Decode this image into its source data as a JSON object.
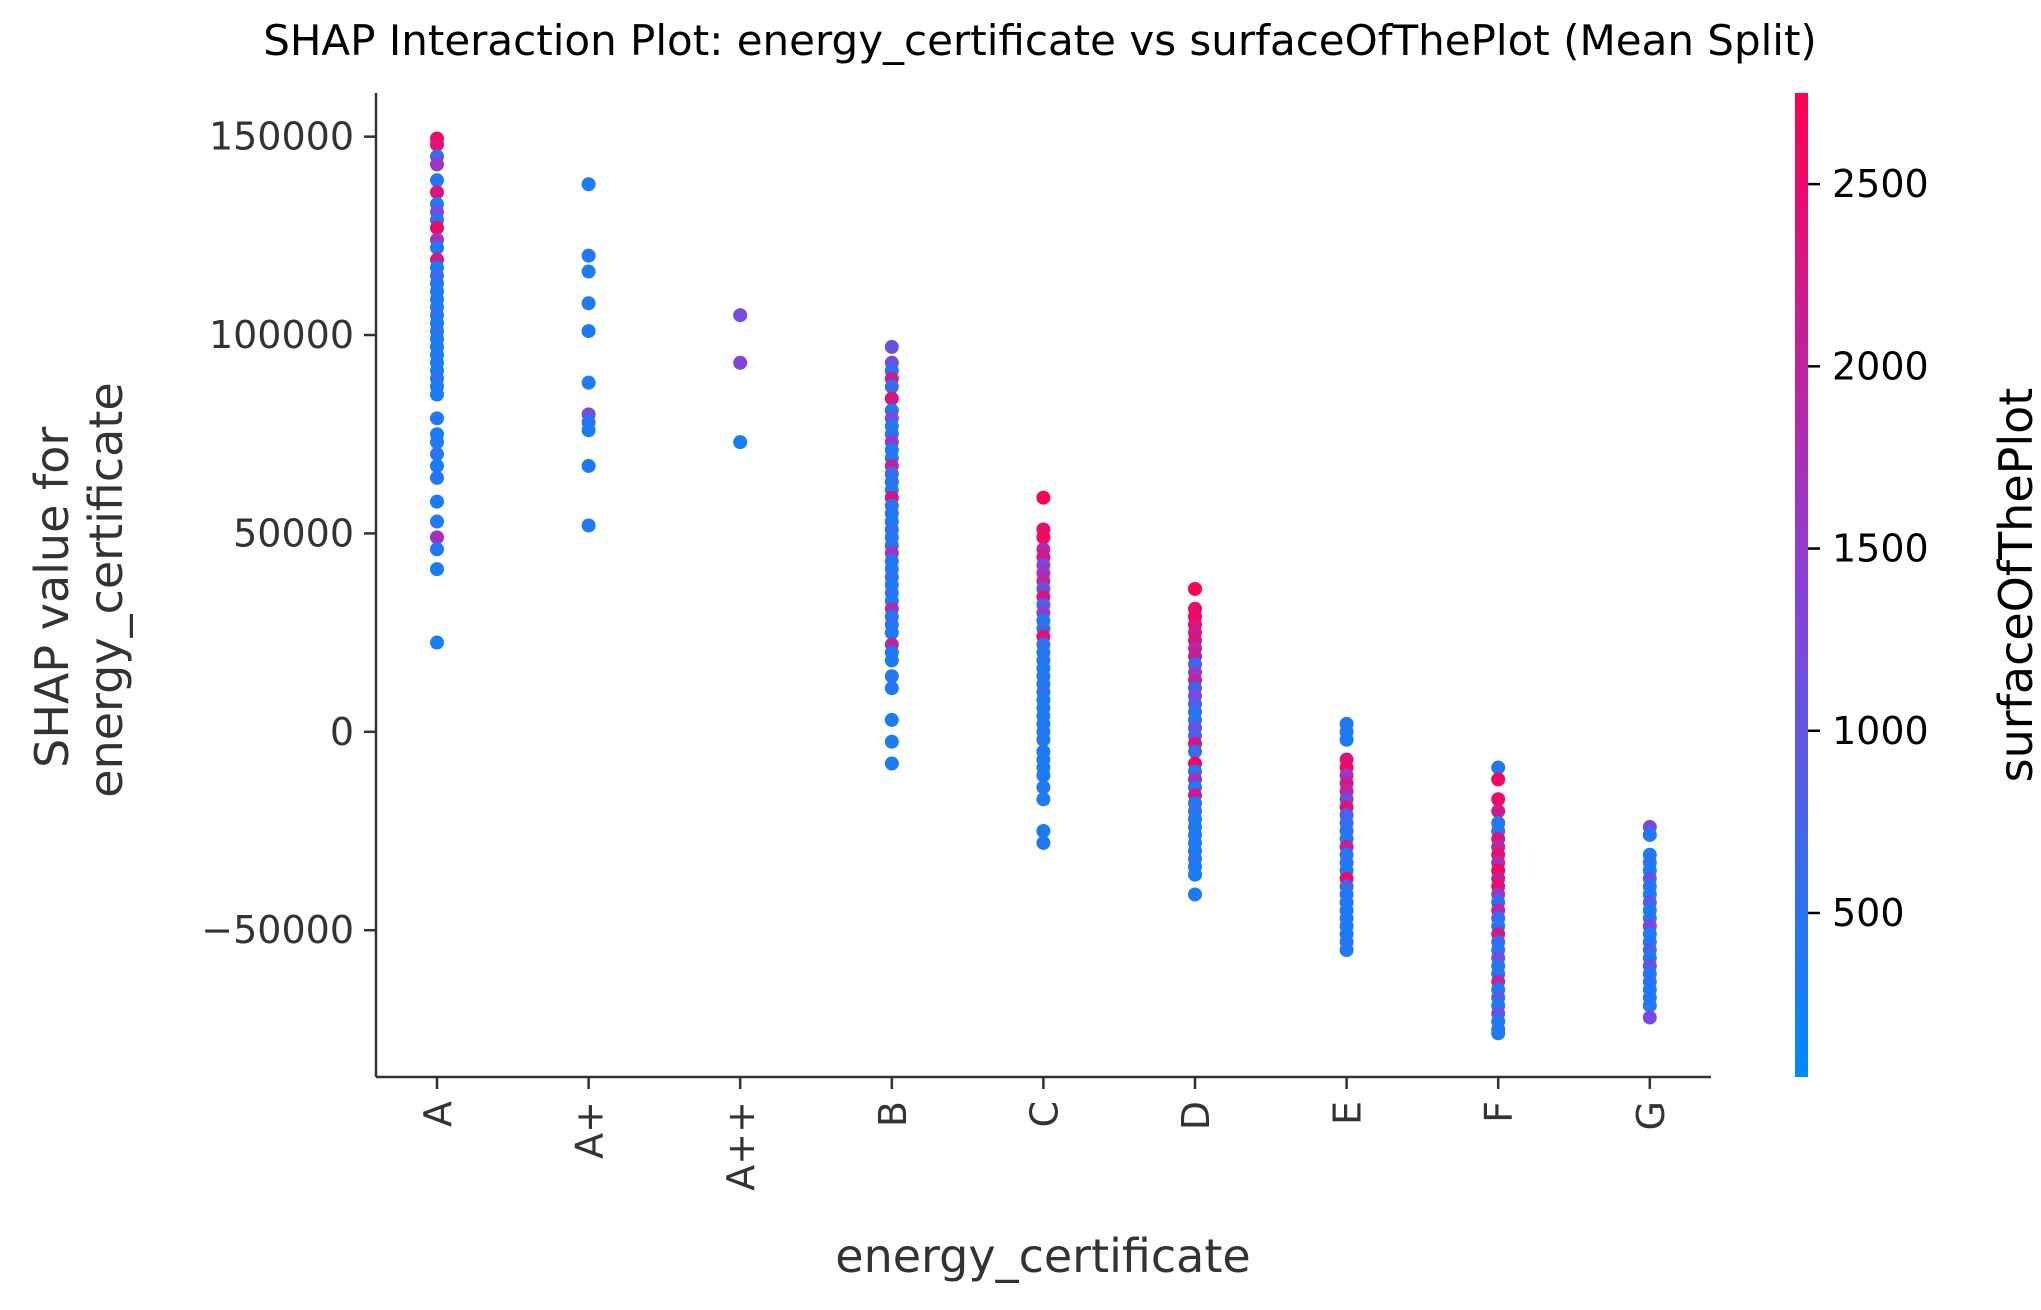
{
  "chart_data": {
    "type": "scatter",
    "title": "SHAP Interaction Plot: energy_certificate vs surfaceOfThePlot (Mean Split)",
    "xlabel": "energy_certificate",
    "ylabel_lines": [
      "SHAP value for",
      "energy_certificate"
    ],
    "categories": [
      "A",
      "A+",
      "A++",
      "B",
      "C",
      "D",
      "E",
      "F",
      "G"
    ],
    "y_ticks": [
      150000,
      100000,
      50000,
      0,
      -50000
    ],
    "y_tick_labels": [
      "150000",
      "100000",
      "50000",
      "0",
      "−50000"
    ],
    "ylim": [
      -87000,
      161000
    ],
    "colorbar": {
      "label": "surfaceOfThePlot",
      "range": [
        50,
        2750
      ],
      "ticks": [
        2500,
        2000,
        1500,
        1000,
        500
      ],
      "tick_labels": [
        "2500",
        "2000",
        "1500",
        "1000",
        "500"
      ],
      "color_low": "#008afb",
      "color_mid": "#8a40d8",
      "color_high": "#ff0052"
    },
    "series": [
      {
        "category": "A",
        "points": [
          [
            149500,
            2600
          ],
          [
            148000,
            2400
          ],
          [
            145000,
            600
          ],
          [
            143000,
            1600
          ],
          [
            139000,
            400
          ],
          [
            136000,
            2300
          ],
          [
            133000,
            300
          ],
          [
            131000,
            1200
          ],
          [
            129000,
            500
          ],
          [
            127000,
            2500
          ],
          [
            124000,
            1700
          ],
          [
            122000,
            400
          ],
          [
            119000,
            2200
          ],
          [
            117000,
            300
          ],
          [
            115000,
            600
          ],
          [
            113000,
            500
          ],
          [
            111000,
            300
          ],
          [
            109000,
            400
          ],
          [
            107000,
            350
          ],
          [
            105000,
            500
          ],
          [
            103000,
            300
          ],
          [
            101000,
            450
          ],
          [
            99000,
            400
          ],
          [
            97000,
            300
          ],
          [
            95000,
            350
          ],
          [
            93000,
            400
          ],
          [
            91000,
            300
          ],
          [
            89000,
            500
          ],
          [
            87000,
            350
          ],
          [
            85000,
            300
          ],
          [
            79000,
            400
          ],
          [
            75000,
            300
          ],
          [
            73000,
            350
          ],
          [
            70000,
            450
          ],
          [
            67000,
            300
          ],
          [
            64000,
            400
          ],
          [
            58000,
            300
          ],
          [
            53000,
            350
          ],
          [
            49000,
            1700
          ],
          [
            46000,
            400
          ],
          [
            41000,
            300
          ],
          [
            22500,
            250
          ]
        ]
      },
      {
        "category": "A+",
        "points": [
          [
            138000,
            350
          ],
          [
            120000,
            400
          ],
          [
            116000,
            350
          ],
          [
            108000,
            400
          ],
          [
            101000,
            300
          ],
          [
            88000,
            350
          ],
          [
            80000,
            1200
          ],
          [
            78000,
            400
          ],
          [
            76000,
            350
          ],
          [
            67000,
            300
          ],
          [
            52000,
            350
          ]
        ]
      },
      {
        "category": "A++",
        "points": [
          [
            105000,
            1200
          ],
          [
            93000,
            1300
          ],
          [
            73000,
            300
          ]
        ]
      },
      {
        "category": "B",
        "points": [
          [
            97000,
            1100
          ],
          [
            93000,
            1200
          ],
          [
            91000,
            500
          ],
          [
            89000,
            2100
          ],
          [
            87000,
            600
          ],
          [
            84000,
            2300
          ],
          [
            81000,
            400
          ],
          [
            79000,
            1300
          ],
          [
            77000,
            350
          ],
          [
            75000,
            500
          ],
          [
            73000,
            1500
          ],
          [
            71000,
            350
          ],
          [
            69000,
            400
          ],
          [
            67000,
            2000
          ],
          [
            65000,
            600
          ],
          [
            63000,
            450
          ],
          [
            61000,
            350
          ],
          [
            59000,
            2300
          ],
          [
            57000,
            500
          ],
          [
            55000,
            400
          ],
          [
            53000,
            300
          ],
          [
            51000,
            600
          ],
          [
            49000,
            350
          ],
          [
            47000,
            500
          ],
          [
            45000,
            1600
          ],
          [
            43000,
            400
          ],
          [
            41000,
            300
          ],
          [
            39000,
            500
          ],
          [
            37000,
            350
          ],
          [
            35000,
            450
          ],
          [
            33000,
            300
          ],
          [
            31000,
            1800
          ],
          [
            29000,
            400
          ],
          [
            27000,
            500
          ],
          [
            25000,
            350
          ],
          [
            22000,
            2000
          ],
          [
            20000,
            400
          ],
          [
            18000,
            300
          ],
          [
            14000,
            450
          ],
          [
            11000,
            350
          ],
          [
            3000,
            300
          ],
          [
            -2500,
            350
          ],
          [
            -8000,
            300
          ]
        ]
      },
      {
        "category": "C",
        "points": [
          [
            59000,
            2700
          ],
          [
            51000,
            2500
          ],
          [
            49000,
            2600
          ],
          [
            46000,
            1900
          ],
          [
            44000,
            2200
          ],
          [
            42000,
            1300
          ],
          [
            40000,
            1700
          ],
          [
            38000,
            2000
          ],
          [
            36000,
            1000
          ],
          [
            34000,
            2300
          ],
          [
            32000,
            800
          ],
          [
            30000,
            1500
          ],
          [
            28000,
            400
          ],
          [
            26000,
            600
          ],
          [
            24000,
            2400
          ],
          [
            22000,
            500
          ],
          [
            20000,
            350
          ],
          [
            18000,
            450
          ],
          [
            16000,
            300
          ],
          [
            14000,
            400
          ],
          [
            12000,
            350
          ],
          [
            10000,
            500
          ],
          [
            8000,
            300
          ],
          [
            6000,
            400
          ],
          [
            4000,
            350
          ],
          [
            2000,
            300
          ],
          [
            0,
            450
          ],
          [
            -2000,
            350
          ],
          [
            -5000,
            300
          ],
          [
            -7000,
            400
          ],
          [
            -9000,
            350
          ],
          [
            -11000,
            300
          ],
          [
            -14000,
            400
          ],
          [
            -17000,
            350
          ],
          [
            -25000,
            300
          ],
          [
            -28000,
            400
          ]
        ]
      },
      {
        "category": "D",
        "points": [
          [
            36000,
            2700
          ],
          [
            31000,
            2500
          ],
          [
            29000,
            2600
          ],
          [
            27000,
            2400
          ],
          [
            25000,
            2200
          ],
          [
            23000,
            2300
          ],
          [
            21000,
            1900
          ],
          [
            19000,
            2100
          ],
          [
            17000,
            600
          ],
          [
            15000,
            1500
          ],
          [
            13000,
            2000
          ],
          [
            11000,
            700
          ],
          [
            9000,
            1200
          ],
          [
            7000,
            900
          ],
          [
            5000,
            500
          ],
          [
            3000,
            400
          ],
          [
            1000,
            1100
          ],
          [
            -1000,
            800
          ],
          [
            -3000,
            2300
          ],
          [
            -5000,
            600
          ],
          [
            -8000,
            2500
          ],
          [
            -10000,
            400
          ],
          [
            -12000,
            1700
          ],
          [
            -14000,
            350
          ],
          [
            -16000,
            2200
          ],
          [
            -18000,
            400
          ],
          [
            -20000,
            500
          ],
          [
            -22000,
            350
          ],
          [
            -24000,
            300
          ],
          [
            -26000,
            400
          ],
          [
            -28000,
            350
          ],
          [
            -30000,
            300
          ],
          [
            -32000,
            450
          ],
          [
            -34000,
            350
          ],
          [
            -36000,
            300
          ],
          [
            -41000,
            400
          ]
        ]
      },
      {
        "category": "E",
        "points": [
          [
            2000,
            400
          ],
          [
            0,
            350
          ],
          [
            -2000,
            300
          ],
          [
            -7000,
            2300
          ],
          [
            -9000,
            2600
          ],
          [
            -11000,
            1600
          ],
          [
            -13000,
            2200
          ],
          [
            -15000,
            2000
          ],
          [
            -17000,
            1100
          ],
          [
            -19000,
            2400
          ],
          [
            -21000,
            800
          ],
          [
            -23000,
            600
          ],
          [
            -25000,
            500
          ],
          [
            -27000,
            400
          ],
          [
            -29000,
            2100
          ],
          [
            -31000,
            350
          ],
          [
            -33000,
            450
          ],
          [
            -35000,
            300
          ],
          [
            -37000,
            2500
          ],
          [
            -39000,
            700
          ],
          [
            -41000,
            400
          ],
          [
            -43000,
            350
          ],
          [
            -45000,
            300
          ],
          [
            -47000,
            400
          ],
          [
            -49000,
            350
          ],
          [
            -51000,
            300
          ],
          [
            -53000,
            450
          ],
          [
            -55000,
            350
          ]
        ]
      },
      {
        "category": "F",
        "points": [
          [
            -9000,
            400
          ],
          [
            -12000,
            2600
          ],
          [
            -17000,
            2500
          ],
          [
            -20000,
            2200
          ],
          [
            -23000,
            400
          ],
          [
            -25000,
            350
          ],
          [
            -27000,
            2300
          ],
          [
            -29000,
            2000
          ],
          [
            -31000,
            2400
          ],
          [
            -33000,
            1800
          ],
          [
            -35000,
            2600
          ],
          [
            -37000,
            2100
          ],
          [
            -39000,
            2500
          ],
          [
            -41000,
            1500
          ],
          [
            -43000,
            500
          ],
          [
            -45000,
            1900
          ],
          [
            -47000,
            600
          ],
          [
            -49000,
            400
          ],
          [
            -51000,
            2200
          ],
          [
            -53000,
            700
          ],
          [
            -55000,
            350
          ],
          [
            -57000,
            1200
          ],
          [
            -59000,
            450
          ],
          [
            -61000,
            300
          ],
          [
            -63000,
            2000
          ],
          [
            -65000,
            400
          ],
          [
            -67000,
            800
          ],
          [
            -69000,
            350
          ],
          [
            -71000,
            1100
          ],
          [
            -73000,
            300
          ],
          [
            -75000,
            400
          ],
          [
            -76000,
            350
          ]
        ]
      },
      {
        "category": "G",
        "points": [
          [
            -24000,
            1200
          ],
          [
            -26000,
            400
          ],
          [
            -31000,
            350
          ],
          [
            -33000,
            450
          ],
          [
            -35000,
            300
          ],
          [
            -37000,
            1000
          ],
          [
            -39000,
            400
          ],
          [
            -41000,
            350
          ],
          [
            -43000,
            900
          ],
          [
            -45000,
            300
          ],
          [
            -47000,
            450
          ],
          [
            -49000,
            1300
          ],
          [
            -51000,
            350
          ],
          [
            -53000,
            400
          ],
          [
            -55000,
            800
          ],
          [
            -57000,
            300
          ],
          [
            -59000,
            1100
          ],
          [
            -61000,
            350
          ],
          [
            -63000,
            450
          ],
          [
            -65000,
            300
          ],
          [
            -67000,
            400
          ],
          [
            -69000,
            350
          ],
          [
            -72000,
            1200
          ]
        ]
      }
    ]
  }
}
